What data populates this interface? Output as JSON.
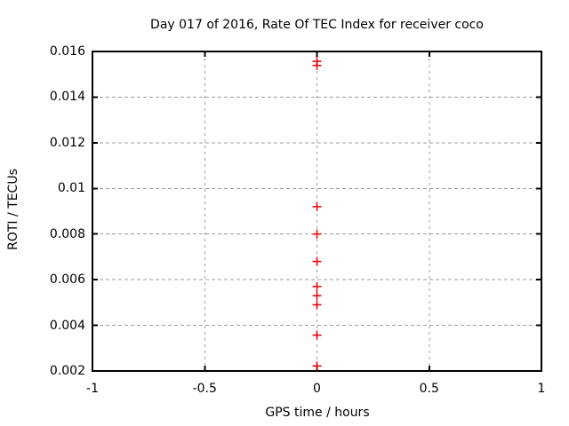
{
  "chart_data": {
    "type": "scatter",
    "title": "Day 017 of 2016, Rate Of TEC Index for receiver coco",
    "xlabel": "GPS time / hours",
    "ylabel": "ROTI / TECUs",
    "xlim": [
      -1,
      1
    ],
    "ylim": [
      0.002,
      0.016
    ],
    "xticks": [
      -1,
      -0.5,
      0,
      0.5,
      1
    ],
    "xtick_labels": [
      "-1",
      "-0.5",
      "0",
      "0.5",
      "1"
    ],
    "yticks": [
      0.002,
      0.004,
      0.006,
      0.008,
      0.01,
      0.012,
      0.014,
      0.016
    ],
    "ytick_labels": [
      "0.002",
      "0.004",
      "0.006",
      "0.008",
      "0.01",
      "0.012",
      "0.014",
      "0.016"
    ],
    "grid": true,
    "legend": "none",
    "series": [
      {
        "name": "ROTI",
        "marker": "plus",
        "color": "#e60000",
        "points": [
          {
            "x": 0,
            "y": 0.01557
          },
          {
            "x": 0,
            "y": 0.01539
          },
          {
            "x": 0,
            "y": 0.0092
          },
          {
            "x": 0,
            "y": 0.008
          },
          {
            "x": 0,
            "y": 0.0068
          },
          {
            "x": 0,
            "y": 0.0057
          },
          {
            "x": 0,
            "y": 0.0053
          },
          {
            "x": 0,
            "y": 0.0049
          },
          {
            "x": 0,
            "y": 0.00357
          },
          {
            "x": 0,
            "y": 0.00222
          }
        ]
      }
    ],
    "colors": {
      "background": "#ffffff",
      "border": "#000000",
      "grid": "#9c9c9c",
      "marker": "#e60000",
      "text": "#000000"
    }
  }
}
